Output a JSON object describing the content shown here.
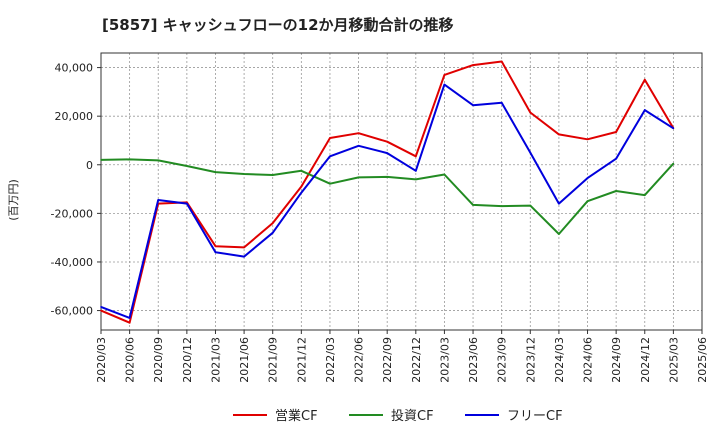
{
  "chart_data": {
    "type": "line",
    "title": "[5857]  キャッシュフローの12か月移動合計の推移",
    "ylabel": "(百万円)",
    "xlabel": "",
    "ylim": [
      -68000,
      46000
    ],
    "yticks": [
      40000,
      20000,
      0,
      -20000,
      -40000,
      -60000
    ],
    "ytick_labels": [
      "40,000",
      "20,000",
      "0",
      "-20,000",
      "-40,000",
      "-60,000"
    ],
    "x": [
      "2020/03",
      "2020/06",
      "2020/09",
      "2020/12",
      "2021/03",
      "2021/06",
      "2021/09",
      "2021/12",
      "2022/03",
      "2022/06",
      "2022/09",
      "2022/12",
      "2023/03",
      "2023/06",
      "2023/09",
      "2023/12",
      "2024/03",
      "2024/06",
      "2024/09",
      "2024/12",
      "2025/03",
      "2025/06"
    ],
    "grid": true,
    "legend_position": "bottom",
    "series": [
      {
        "name": "営業CF",
        "color": "#e00000",
        "values": [
          -60000,
          -65000,
          -16000,
          -15500,
          -33500,
          -34000,
          -24000,
          -9000,
          11000,
          13000,
          9500,
          3500,
          37000,
          41000,
          42500,
          21500,
          12500,
          10500,
          13500,
          35000,
          15000,
          null
        ]
      },
      {
        "name": "投資CF",
        "color": "#228b22",
        "values": [
          2000,
          2200,
          1800,
          -500,
          -3000,
          -3800,
          -4200,
          -2500,
          -7800,
          -5200,
          -5000,
          -6000,
          -4000,
          -16500,
          -17000,
          -16800,
          -28500,
          -15000,
          -10800,
          -12500,
          500,
          null
        ]
      },
      {
        "name": "フリーCF",
        "color": "#0000dd",
        "values": [
          -58500,
          -63000,
          -14500,
          -16000,
          -36000,
          -37800,
          -28000,
          -11500,
          3500,
          7800,
          4800,
          -2500,
          33000,
          24500,
          25500,
          5000,
          -16000,
          -5500,
          2500,
          22500,
          15000,
          null
        ]
      }
    ]
  }
}
